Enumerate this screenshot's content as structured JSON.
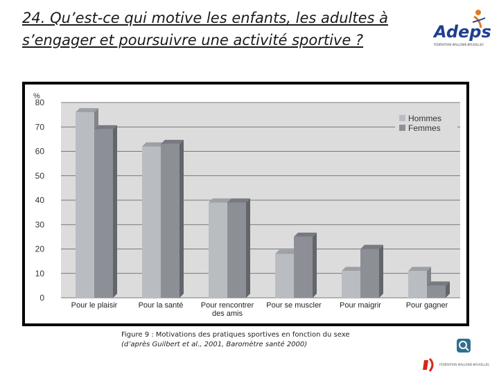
{
  "slide": {
    "title": "24. Qu’est-ce qui motive les enfants, les adultes à s’engager et poursuivre une activité sportive ?",
    "caption_line1": "Figure 9 : Motivations des pratiques sportives en fonction du sexe",
    "caption_line2": "(d’après Guilbert et al., 2001, Baromètre santé 2000)"
  },
  "logos": {
    "adeps_text": "Adeps",
    "adeps_subtext": "FÉDÉRATION WALLONIE-BRUXELLES",
    "fwb_text": "FÉDÉRATION WALLONIE-BRUXELLES"
  },
  "colors": {
    "hommes": "#b9bcc1",
    "femmes": "#8c9096",
    "plot_bg": "#dcdcdc",
    "adeps_blue": "#1f3f8f",
    "adeps_orange": "#e07a1f",
    "fwb_red": "#d9261c"
  },
  "icons": [
    "help-icon"
  ],
  "chart_data": {
    "type": "bar",
    "ylabel": "%",
    "ylim": [
      0,
      80
    ],
    "yticks": [
      0,
      10,
      20,
      30,
      40,
      50,
      60,
      70,
      80
    ],
    "categories": [
      "Pour le plaisir",
      "Pour la santé",
      "Pour rencontrer des amis",
      "Pour se muscler",
      "Pour maigrir",
      "Pour gagner"
    ],
    "category_lines": [
      [
        "Pour le plaisir"
      ],
      [
        "Pour la santé"
      ],
      [
        "Pour rencontrer",
        "des amis"
      ],
      [
        "Pour se muscler"
      ],
      [
        "Pour maigrir"
      ],
      [
        "Pour gagner"
      ]
    ],
    "series": [
      {
        "name": "Hommes",
        "values": [
          76,
          62,
          39,
          18,
          11,
          11
        ]
      },
      {
        "name": "Femmes",
        "values": [
          69,
          63,
          39,
          25,
          20,
          5
        ]
      }
    ],
    "legend": "top-right",
    "grid": true
  }
}
